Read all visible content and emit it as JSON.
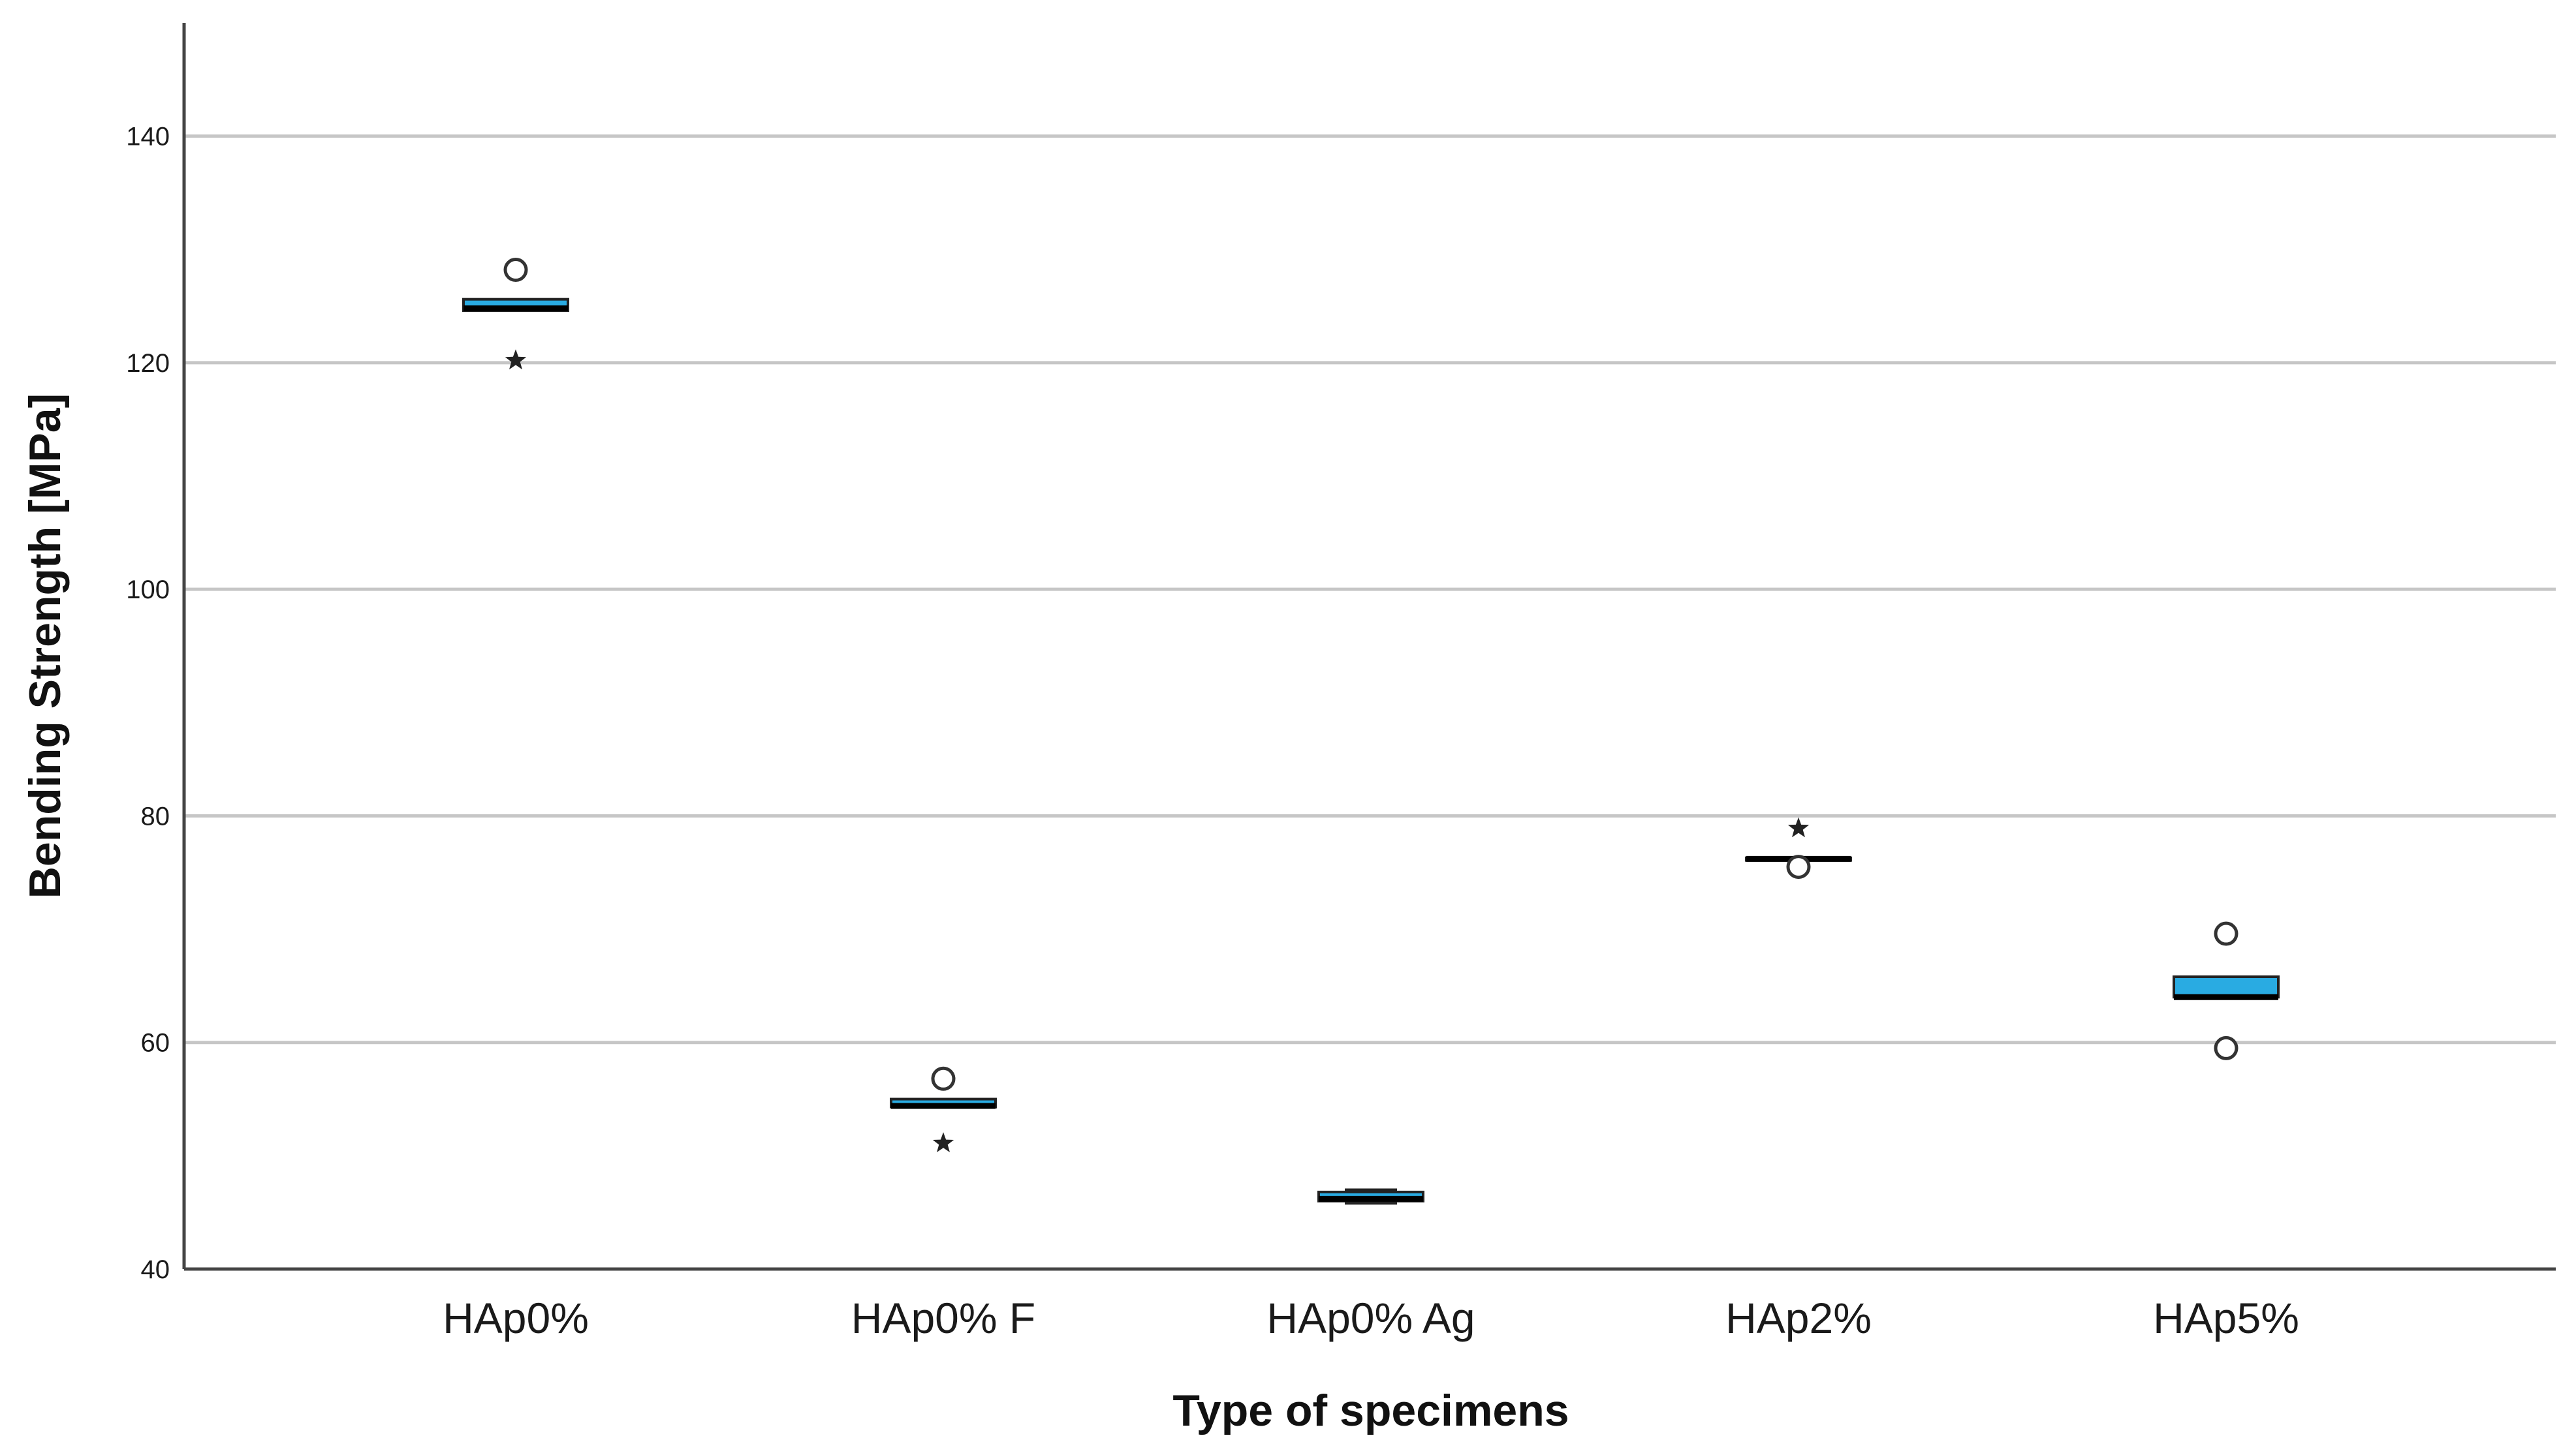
{
  "chart_data": {
    "type": "boxplot",
    "xlabel": "Type of specimens",
    "ylabel": "Bending Strength [MPa]",
    "ylim": [
      40,
      150
    ],
    "yticks": [
      40,
      60,
      80,
      100,
      120,
      140
    ],
    "grid": true,
    "box_color": "#29ABE2",
    "categories": [
      "HAp0%",
      "HAp0% F",
      "HAp0% Ag",
      "HAp2%",
      "HAp5%"
    ],
    "boxes": [
      {
        "category": "HAp0%",
        "q1": 124.6,
        "median": 124.8,
        "q3": 125.6,
        "whisker_low": 124.6,
        "whisker_high": 125.6,
        "outliers": [
          128.2
        ],
        "extremes": [
          120.2
        ]
      },
      {
        "category": "HAp0% F",
        "q1": 54.3,
        "median": 54.4,
        "q3": 55.0,
        "whisker_low": 54.3,
        "whisker_high": 55.0,
        "outliers": [
          56.8
        ],
        "extremes": [
          51.1
        ]
      },
      {
        "category": "HAp0% Ag",
        "q1": 46.0,
        "median": 46.2,
        "q3": 46.8,
        "whisker_low": 45.8,
        "whisker_high": 47.0,
        "outliers": [],
        "extremes": []
      },
      {
        "category": "HAp2%",
        "q1": 76.2,
        "median": 76.2,
        "q3": 76.3,
        "whisker_low": 76.2,
        "whisker_high": 76.3,
        "outliers": [
          75.5
        ],
        "extremes": [
          78.9
        ]
      },
      {
        "category": "HAp5%",
        "q1": 64.0,
        "median": 64.0,
        "q3": 65.8,
        "whisker_low": 64.0,
        "whisker_high": 65.8,
        "outliers": [
          69.6,
          59.5
        ],
        "extremes": []
      }
    ]
  }
}
